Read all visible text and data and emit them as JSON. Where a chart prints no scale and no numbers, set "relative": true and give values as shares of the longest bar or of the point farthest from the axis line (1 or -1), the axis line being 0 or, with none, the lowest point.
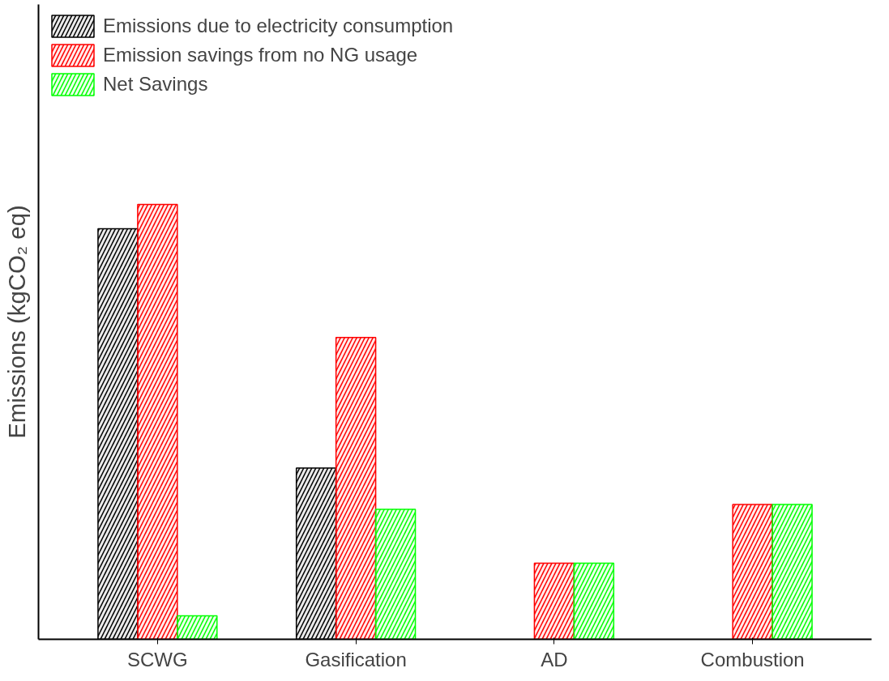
{
  "chart_data": {
    "type": "bar",
    "ylabel": "Emissions (kgCO₂ eq)",
    "relative": true,
    "legend": "top left",
    "grid": false,
    "categories": [
      "SCWG",
      "Gasification",
      "AD",
      "Combustion"
    ],
    "series": [
      {
        "name": "Emissions due to electricity consumption",
        "color": "#000000",
        "values": [
          0.944,
          0.394,
          null,
          null
        ]
      },
      {
        "name": "Emission savings from no NG usage",
        "color": "#ff0000",
        "values": [
          1.0,
          0.694,
          0.175,
          0.31
        ]
      },
      {
        "name": "Net Savings",
        "color": "#00ff00",
        "values": [
          0.054,
          0.299,
          0.175,
          0.31
        ]
      }
    ]
  }
}
